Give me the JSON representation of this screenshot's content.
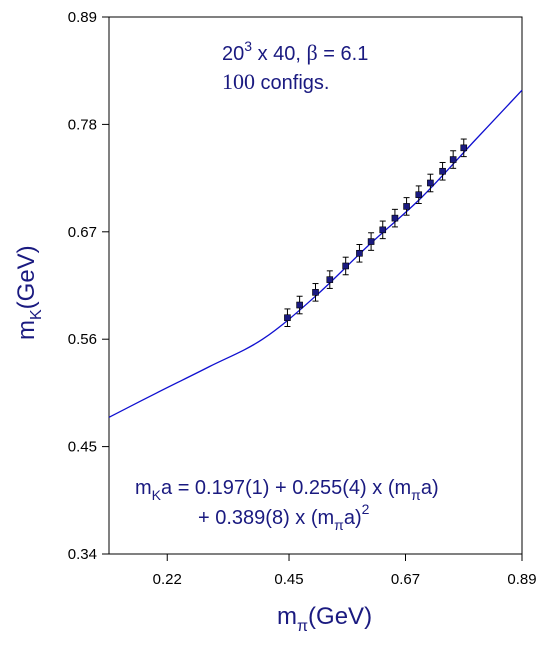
{
  "chart_data": {
    "type": "scatter",
    "x_range": [
      0.11,
      0.89
    ],
    "y_range": [
      0.34,
      0.89
    ],
    "x_ticks": [
      "0.22",
      "0.45",
      "0.67",
      "0.89"
    ],
    "x_tick_values": [
      0.22,
      0.45,
      0.67,
      0.89
    ],
    "y_ticks": [
      "0.34",
      "0.45",
      "0.56",
      "0.67",
      "0.78",
      "0.89"
    ],
    "y_tick_values": [
      0.34,
      0.45,
      0.56,
      0.67,
      0.78,
      0.89
    ],
    "xlabel": {
      "base": "m",
      "sub": "π",
      "unit": "(GeV)"
    },
    "ylabel": {
      "base": "m",
      "sub": "K",
      "unit": "(GeV)"
    },
    "grid": false,
    "colors": {
      "line": "#1010d0",
      "points": "#1a1a80",
      "text": "#1a1a80"
    },
    "points": [
      {
        "x": 0.447,
        "y": 0.582,
        "err": 0.009
      },
      {
        "x": 0.47,
        "y": 0.595,
        "err": 0.009
      },
      {
        "x": 0.5,
        "y": 0.608,
        "err": 0.009
      },
      {
        "x": 0.527,
        "y": 0.621,
        "err": 0.009
      },
      {
        "x": 0.557,
        "y": 0.635,
        "err": 0.009
      },
      {
        "x": 0.583,
        "y": 0.648,
        "err": 0.009
      },
      {
        "x": 0.605,
        "y": 0.66,
        "err": 0.009
      },
      {
        "x": 0.627,
        "y": 0.672,
        "err": 0.009
      },
      {
        "x": 0.65,
        "y": 0.684,
        "err": 0.009
      },
      {
        "x": 0.672,
        "y": 0.696,
        "err": 0.009
      },
      {
        "x": 0.695,
        "y": 0.708,
        "err": 0.009
      },
      {
        "x": 0.717,
        "y": 0.72,
        "err": 0.009
      },
      {
        "x": 0.74,
        "y": 0.732,
        "err": 0.009
      },
      {
        "x": 0.76,
        "y": 0.744,
        "err": 0.009
      },
      {
        "x": 0.78,
        "y": 0.756,
        "err": 0.009
      }
    ],
    "fit_curve": [
      {
        "x": 0.11,
        "y": 0.48
      },
      {
        "x": 0.2,
        "y": 0.505
      },
      {
        "x": 0.3,
        "y": 0.532
      },
      {
        "x": 0.4,
        "y": 0.56
      },
      {
        "x": 0.5,
        "y": 0.604
      },
      {
        "x": 0.6,
        "y": 0.656
      },
      {
        "x": 0.7,
        "y": 0.705
      },
      {
        "x": 0.8,
        "y": 0.763
      },
      {
        "x": 0.89,
        "y": 0.815
      }
    ]
  },
  "annotations": {
    "lattice": {
      "a": "20",
      "sup": "3",
      "b": " x 40, ",
      "beta": "β",
      "c": " = 6.1"
    },
    "configs": {
      "num": "100",
      "rest": " configs."
    },
    "fit_line1": {
      "m": "m",
      "sub": "K",
      "rest": "a = 0.197(1) + 0.255(4) x (m",
      "sub2": "π",
      "end": "a)"
    },
    "fit_line2": {
      "start": "+ 0.389(8) x (m",
      "sub": "π",
      "mid": "a)",
      "sup": "2"
    }
  }
}
